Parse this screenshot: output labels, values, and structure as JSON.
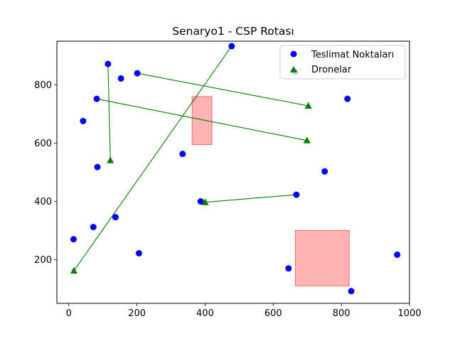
{
  "chart_data": {
    "type": "scatter",
    "title": "Senaryo1 - CSP Rotası",
    "xlabel": "",
    "ylabel": "",
    "xlim": [
      -35,
      1000
    ],
    "ylim": [
      50,
      950
    ],
    "xticks": [
      0,
      200,
      400,
      600,
      800,
      1000
    ],
    "yticks": [
      200,
      400,
      600,
      800
    ],
    "grid": false,
    "legend_position": "top-right",
    "colors": {
      "points": "#0000ff",
      "drones": "#008000",
      "routes": "#008000",
      "zones_fill": "#ff9999",
      "zones_edge": "#ff6666"
    },
    "series": [
      {
        "name": "Teslimat Noktaları",
        "marker": "circle",
        "points": [
          [
            478,
            933
          ],
          [
            115,
            872
          ],
          [
            201,
            840
          ],
          [
            153,
            822
          ],
          [
            665,
            845
          ],
          [
            82,
            752
          ],
          [
            818,
            752
          ],
          [
            42,
            676
          ],
          [
            334,
            563
          ],
          [
            84,
            518
          ],
          [
            751,
            503
          ],
          [
            668,
            423
          ],
          [
            387,
            400
          ],
          [
            137,
            346
          ],
          [
            72,
            312
          ],
          [
            14,
            270
          ],
          [
            206,
            222
          ],
          [
            964,
            217
          ],
          [
            645,
            170
          ],
          [
            829,
            92
          ]
        ]
      },
      {
        "name": "Dronelar",
        "marker": "triangle",
        "points": [
          [
            703,
            728
          ],
          [
            699,
            609
          ],
          [
            122,
            541
          ],
          [
            400,
            397
          ],
          [
            15,
            162
          ]
        ]
      }
    ],
    "routes": [
      {
        "from": [
          703,
          728
        ],
        "to": [
          201,
          840
        ]
      },
      {
        "from": [
          699,
          609
        ],
        "to": [
          82,
          752
        ]
      },
      {
        "from": [
          122,
          541
        ],
        "to": [
          115,
          872
        ]
      },
      {
        "from": [
          400,
          397
        ],
        "to": [
          668,
          423
        ]
      },
      {
        "from": [
          15,
          162
        ],
        "to": [
          478,
          933
        ]
      }
    ],
    "zones": [
      {
        "x": [
          362,
          420
        ],
        "y": [
          595,
          760
        ]
      },
      {
        "x": [
          665,
          823
        ],
        "y": [
          110,
          300
        ]
      }
    ]
  }
}
